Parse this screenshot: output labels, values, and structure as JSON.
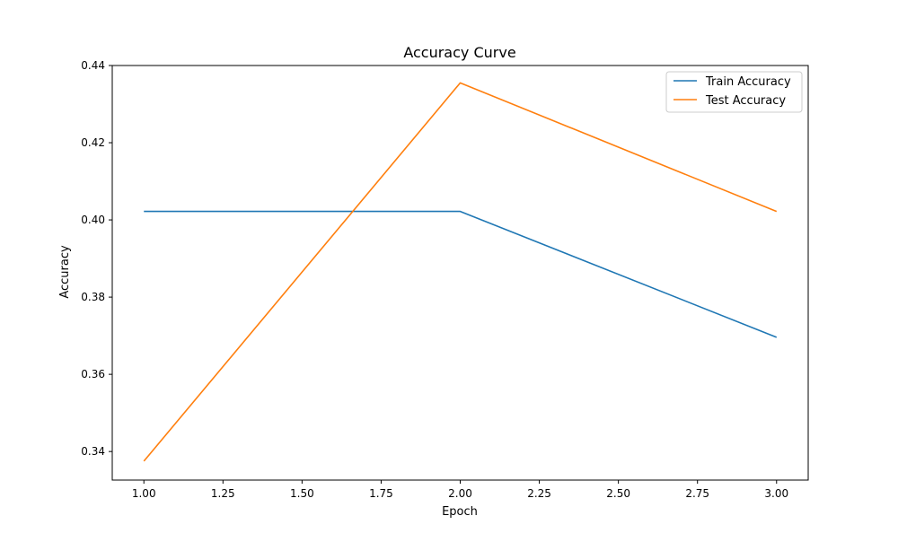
{
  "chart_data": {
    "type": "line",
    "title": "Accuracy Curve",
    "xlabel": "Epoch",
    "ylabel": "Accuracy",
    "xlim": [
      0.9,
      3.1
    ],
    "ylim": [
      0.3326,
      0.44
    ],
    "xticks": [
      1.0,
      1.25,
      1.5,
      1.75,
      2.0,
      2.25,
      2.5,
      2.75,
      3.0
    ],
    "xtick_labels": [
      "1.00",
      "1.25",
      "1.50",
      "1.75",
      "2.00",
      "2.25",
      "2.50",
      "2.75",
      "3.00"
    ],
    "yticks": [
      0.34,
      0.36,
      0.38,
      0.4,
      0.42,
      0.44
    ],
    "ytick_labels": [
      "0.34",
      "0.36",
      "0.38",
      "0.40",
      "0.42",
      "0.44"
    ],
    "grid": false,
    "legend_position": "top-right",
    "x": [
      1,
      2,
      3
    ],
    "series": [
      {
        "name": "Train Accuracy",
        "color": "#1f77b4",
        "values": [
          0.4022,
          0.4022,
          0.3696
        ]
      },
      {
        "name": "Test Accuracy",
        "color": "#ff7f0e",
        "values": [
          0.3375,
          0.4355,
          0.4022
        ]
      }
    ]
  }
}
